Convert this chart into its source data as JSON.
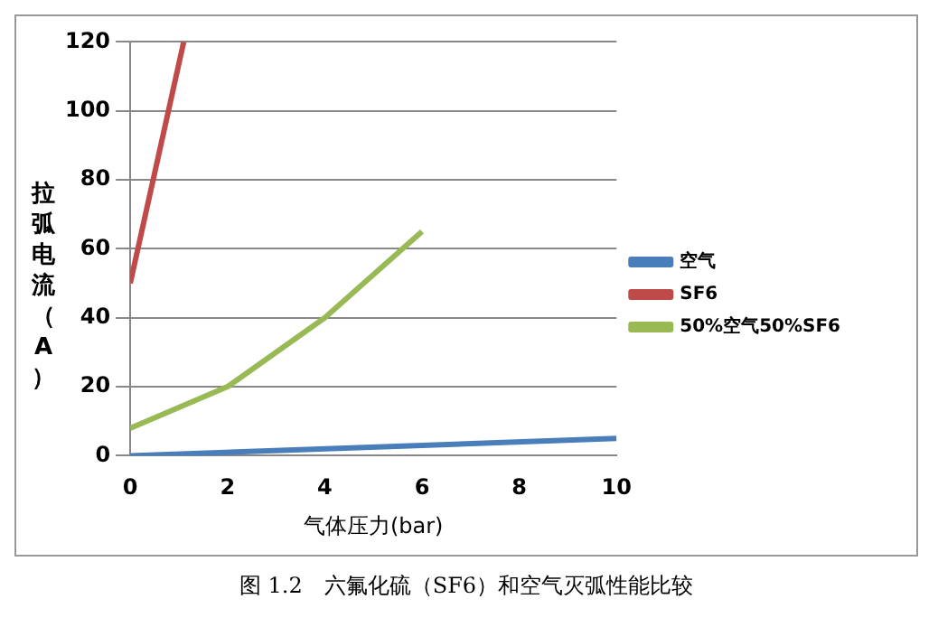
{
  "chart_data": {
    "type": "line",
    "xlabel": "气体压力(bar)",
    "ylabel": "拉弧电流（A）",
    "series": [
      {
        "name": "空气",
        "color": "#4a7ebb",
        "x": [
          0,
          10
        ],
        "values": [
          0,
          5
        ]
      },
      {
        "name": "SF6",
        "color": "#be4b48",
        "x": [
          0,
          1.1
        ],
        "values": [
          50,
          120
        ]
      },
      {
        "name": "50%空气50%SF6",
        "color": "#98b954",
        "x": [
          0,
          2,
          4,
          6
        ],
        "values": [
          8,
          20,
          40,
          65
        ]
      }
    ],
    "xlim": [
      0,
      10
    ],
    "xticks": [
      0,
      2,
      4,
      6,
      8,
      10
    ],
    "ylim": [
      0,
      120
    ],
    "yticks": [
      0,
      20,
      40,
      60,
      80,
      100,
      120
    ],
    "grid": "y",
    "legend": "right",
    "marker": "none",
    "line_style": "solid",
    "annotations": [
      "图 1.2　六氟化硫（SF6）和空气灭弧性能比较"
    ]
  }
}
